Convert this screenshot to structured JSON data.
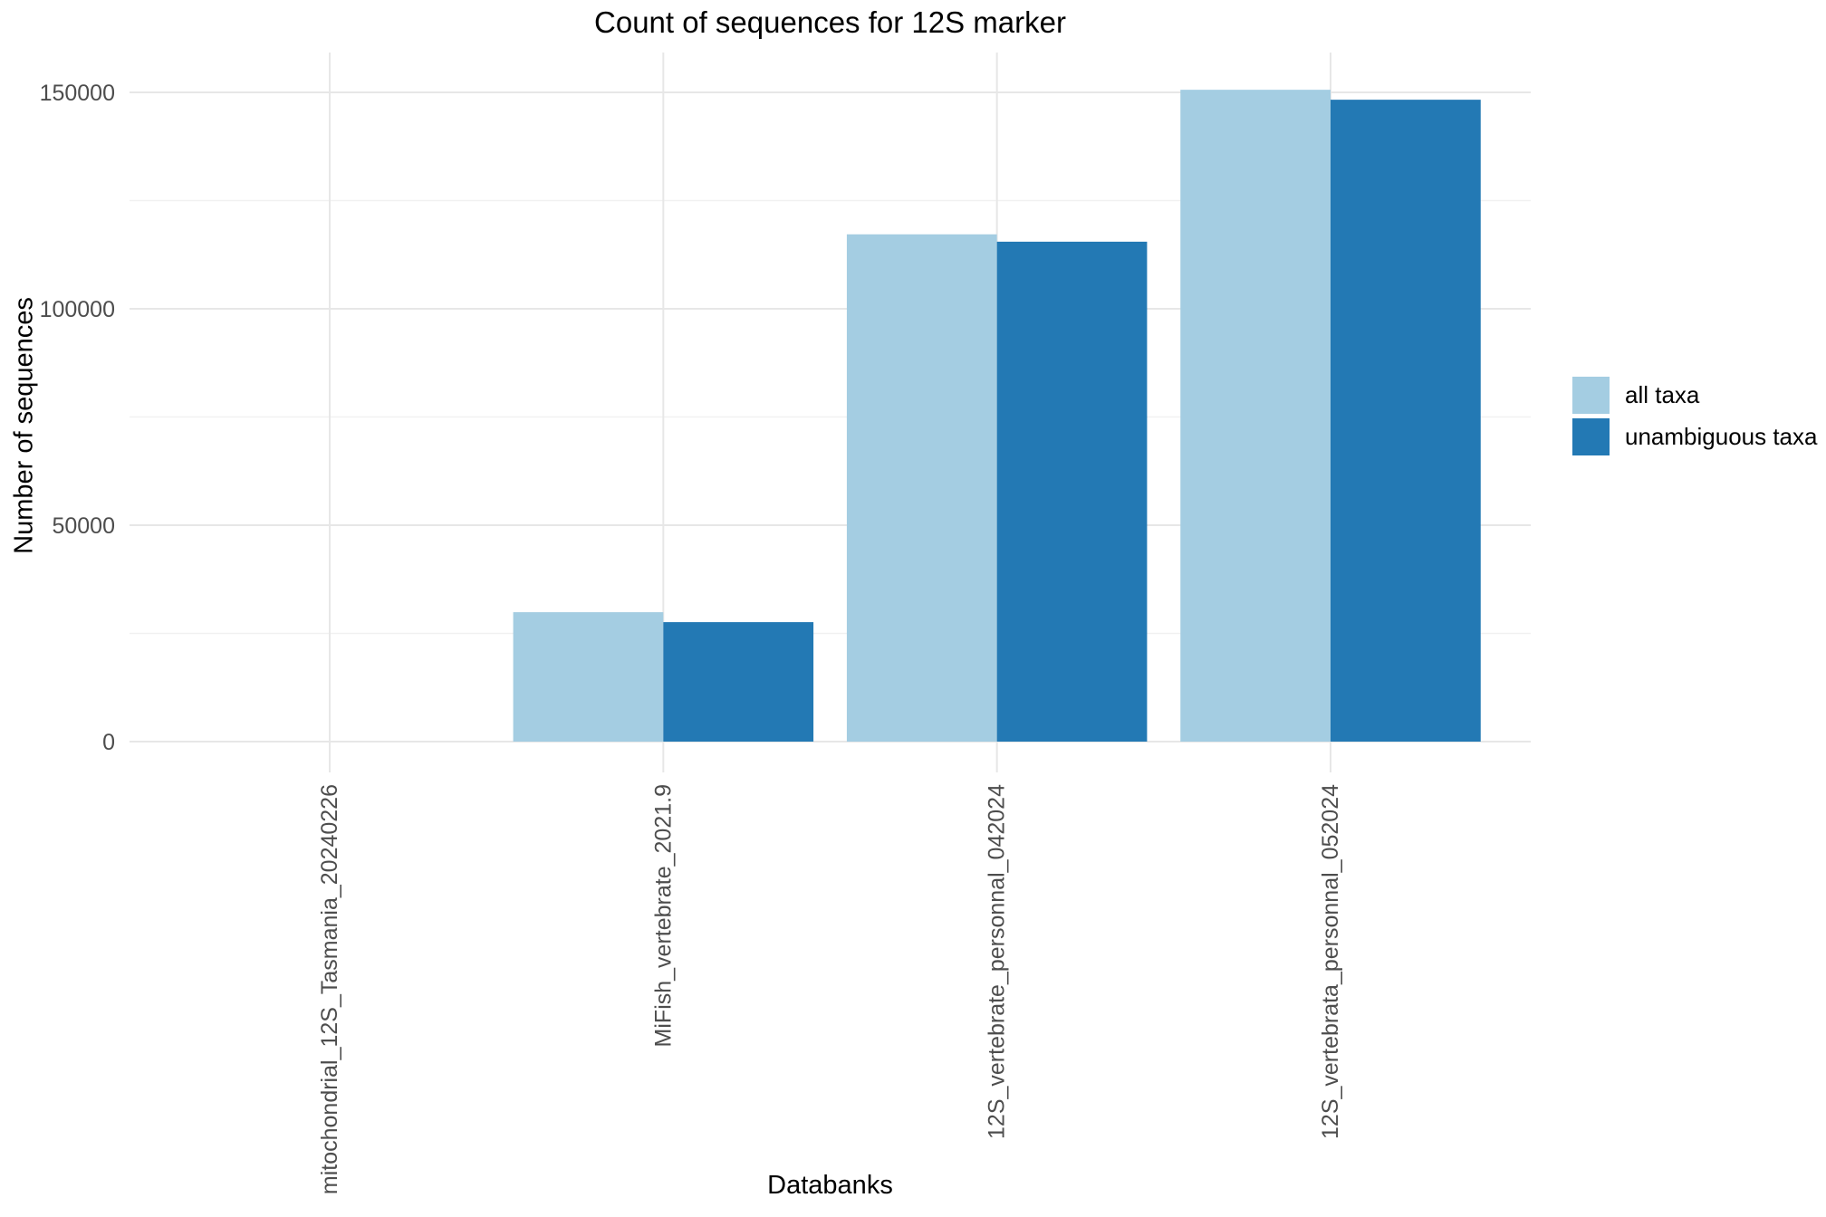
{
  "chart_data": {
    "type": "bar",
    "bar_mode": "dodge",
    "title": "Count of sequences for 12S marker",
    "xlabel": "Databanks",
    "ylabel": "Number of sequences",
    "categories": [
      "mitochondrial_12S_Tasmania_20240226",
      "MiFish_vertebrate_2021.9",
      "12S_vertebrate_personnal_042024",
      "12S_vertebrata_personnal_052024"
    ],
    "series": [
      {
        "name": "all taxa",
        "color": "#A4CDE2",
        "values": [
          0,
          29900,
          117200,
          150600
        ]
      },
      {
        "name": "unambiguous taxa",
        "color": "#2379B4",
        "values": [
          0,
          27600,
          115500,
          148300
        ]
      }
    ],
    "y_ticks": [
      0,
      50000,
      100000,
      150000
    ],
    "y_tick_labels": [
      "0",
      "50000",
      "100000",
      "150000"
    ],
    "y_minor_ticks": [
      25000,
      75000,
      125000
    ],
    "ylim": [
      0,
      158500
    ],
    "grid": "horizontal major+minor, vertical major at category centers",
    "legend_position": "right",
    "x_tick_label_rotation": -90
  },
  "style": {
    "background": "#FFFFFF",
    "grid_major_color": "#E7E7E7",
    "grid_minor_color": "#F1F1F1",
    "tick_label_color": "#4D4D4D",
    "text_color": "#000000"
  }
}
